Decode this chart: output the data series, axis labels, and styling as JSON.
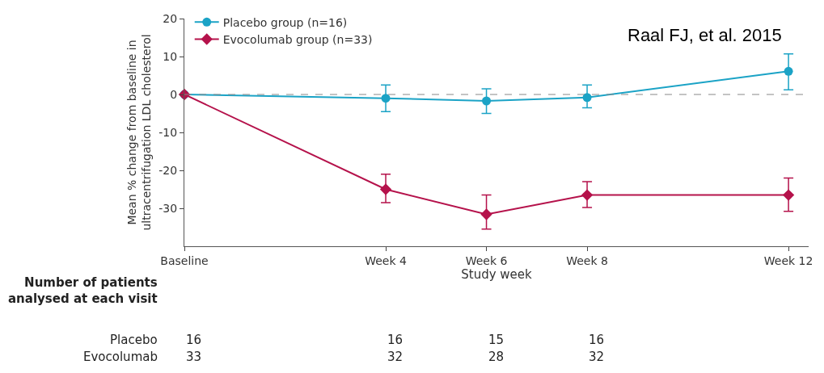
{
  "chart_data": {
    "type": "line",
    "xlabel": "Study week",
    "ylabel": "Mean % change from baseline in\nultracentrifugation LDL cholesterol",
    "categories": [
      "Baseline",
      null,
      null,
      null,
      "Week 4",
      null,
      "Week 6",
      null,
      "Week 8",
      null,
      null,
      null,
      "Week 12"
    ],
    "series": [
      {
        "name": "Placebo group (n=16)",
        "color": "#1ba3c6",
        "marker": "circle",
        "values": [
          0,
          null,
          null,
          null,
          -1,
          null,
          -1.7,
          null,
          -0.8,
          null,
          null,
          null,
          6.1
        ],
        "errors": [
          null,
          null,
          null,
          null,
          [
            -4.5,
            2.5
          ],
          null,
          [
            -5,
            1.5
          ],
          null,
          [
            -3.5,
            2.5
          ],
          null,
          null,
          null,
          [
            1.2,
            10.7
          ]
        ]
      },
      {
        "name": "Evocolumab group (n=33)",
        "color": "#b5124b",
        "marker": "diamond",
        "values": [
          0,
          null,
          null,
          null,
          -25,
          null,
          -31.6,
          null,
          -26.5,
          null,
          null,
          null,
          -26.5
        ],
        "errors": [
          null,
          null,
          null,
          null,
          [
            -28.5,
            -21
          ],
          null,
          [
            -35.5,
            -26.5
          ],
          null,
          [
            -29.8,
            -23
          ],
          null,
          null,
          null,
          [
            -30.8,
            -22
          ]
        ]
      }
    ],
    "ylim": [
      -40,
      20
    ],
    "yticks": [
      -30,
      -20,
      -10,
      0,
      10,
      20
    ],
    "ref_lines": [
      {
        "axis": "y",
        "value": 0,
        "color": "#888888",
        "line_style": "dashed"
      }
    ],
    "grid": false,
    "legend": "top left",
    "line_style": "solid",
    "annotations": [
      "Raal FJ, et al. 2015",
      "Number of patients\nanalysed at each visit",
      "Placebo",
      "16",
      "16",
      "15",
      "16",
      "Evocolumab",
      "33",
      "32",
      "28",
      "32"
    ]
  }
}
